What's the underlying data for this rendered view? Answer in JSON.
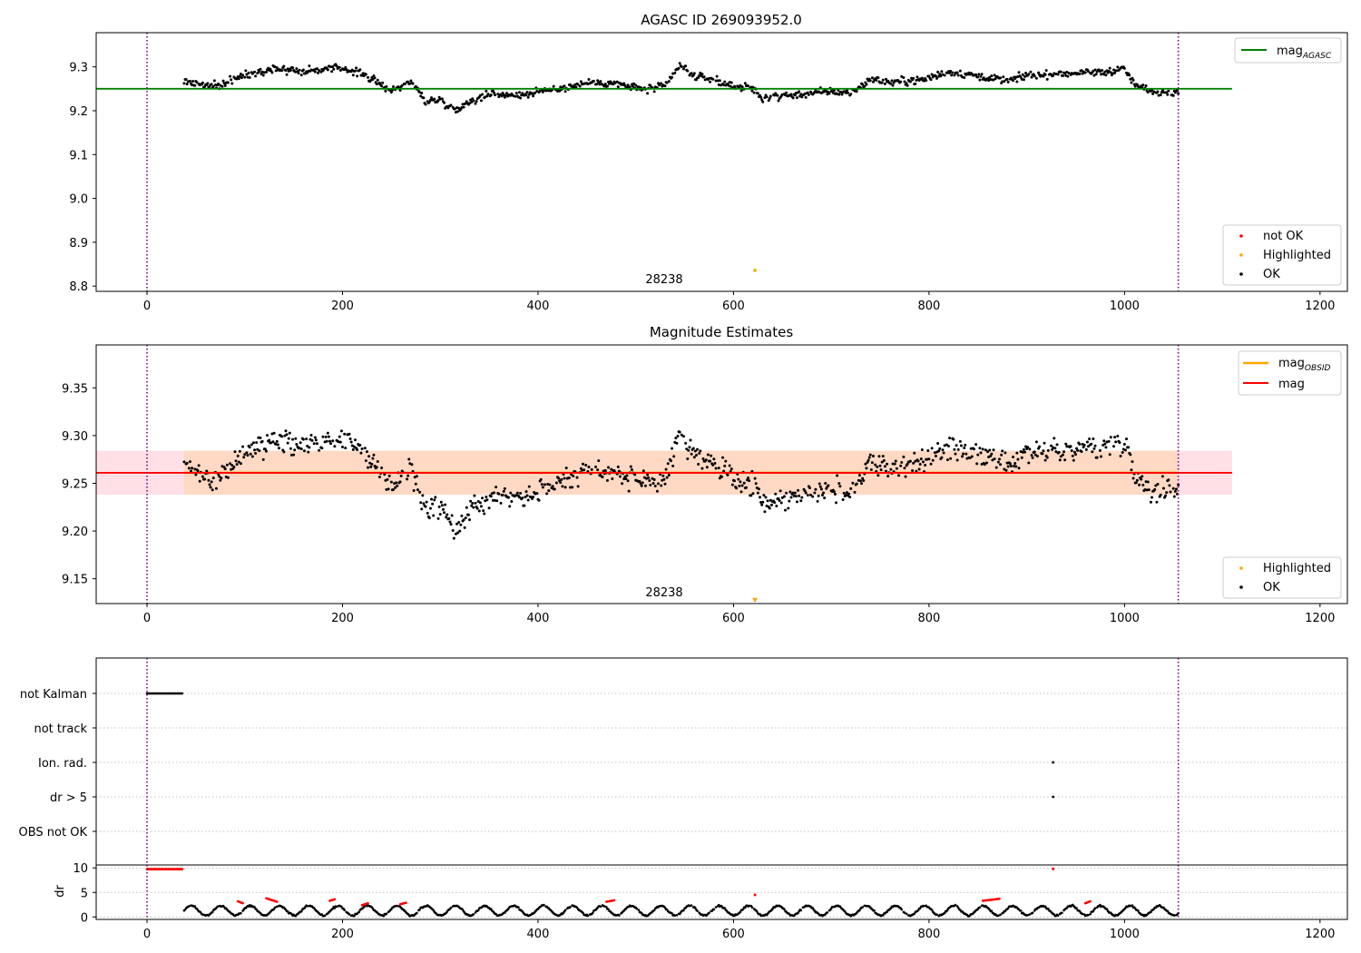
{
  "chart_data": [
    {
      "type": "scatter",
      "title": "AGASC ID 269093952.0",
      "xlabel": "",
      "ylabel": "",
      "xlim": [
        -52,
        1228
      ],
      "ylim": [
        8.788,
        9.378
      ],
      "xticks": [
        0,
        200,
        400,
        600,
        800,
        1000,
        1200
      ],
      "yticks": [
        8.8,
        8.9,
        9.0,
        9.1,
        9.2,
        9.3
      ],
      "ytick_labels": [
        "8.8",
        "8.9",
        "9.0",
        "9.1",
        "9.2",
        "9.3"
      ],
      "vlines": [
        0,
        1055
      ],
      "hline": {
        "y": 9.25,
        "x_range": [
          -52,
          1110
        ],
        "color": "#008000"
      },
      "annotation": {
        "text": "28238",
        "x": 527
      },
      "highlighted_points": [
        {
          "x": 622,
          "y": 8.836
        }
      ],
      "ok_series_profile": {
        "x_range": [
          38,
          1055
        ],
        "knots_x": [
          38,
          50,
          70,
          100,
          130,
          160,
          200,
          220,
          250,
          270,
          285,
          300,
          315,
          330,
          350,
          380,
          400,
          420,
          450,
          480,
          510,
          530,
          545,
          560,
          580,
          600,
          620,
          630,
          650,
          700,
          720,
          740,
          760,
          790,
          820,
          850,
          880,
          900,
          950,
          980,
          1000,
          1010,
          1030,
          1055
        ],
        "knots_y": [
          9.266,
          9.262,
          9.255,
          9.282,
          9.296,
          9.29,
          9.298,
          9.285,
          9.246,
          9.265,
          9.222,
          9.226,
          9.2,
          9.222,
          9.238,
          9.236,
          9.242,
          9.25,
          9.264,
          9.262,
          9.248,
          9.256,
          9.303,
          9.278,
          9.27,
          9.255,
          9.25,
          9.228,
          9.234,
          9.244,
          9.24,
          9.272,
          9.265,
          9.27,
          9.288,
          9.28,
          9.268,
          9.28,
          9.286,
          9.288,
          9.296,
          9.26,
          9.242,
          9.244
        ],
        "noise": 0.008
      },
      "legend": {
        "position": "bottom-right",
        "entries": [
          {
            "label": "not OK",
            "color": "#ff0000",
            "marker": "point"
          },
          {
            "label": "Highlighted",
            "color": "#ffa500",
            "marker": "point"
          },
          {
            "label": "OK",
            "color": "#000000",
            "marker": "point"
          }
        ]
      },
      "legend2": {
        "position": "top-right",
        "entries": [
          {
            "label": "mag",
            "sub": "AGASC",
            "color": "#008000",
            "marker": "line"
          }
        ]
      }
    },
    {
      "type": "scatter",
      "title": "Magnitude Estimates",
      "xlabel": "",
      "ylabel": "",
      "xlim": [
        -52,
        1228
      ],
      "ylim": [
        9.124,
        9.395
      ],
      "xticks": [
        0,
        200,
        400,
        600,
        800,
        1000,
        1200
      ],
      "yticks": [
        9.15,
        9.2,
        9.25,
        9.3,
        9.35
      ],
      "ytick_labels": [
        "9.15",
        "9.20",
        "9.25",
        "9.30",
        "9.35"
      ],
      "vlines": [
        0,
        1055
      ],
      "band_pink": {
        "y_range": [
          9.238,
          9.284
        ],
        "x_range": [
          -52,
          1110
        ],
        "color": "#ffe0e6"
      },
      "band_orange": {
        "y_range": [
          9.238,
          9.284
        ],
        "x_range": [
          38,
          1055
        ],
        "color": "#ffd9c4"
      },
      "hline": {
        "y": 9.261,
        "x_range": [
          -52,
          1110
        ],
        "color": "#ff0000"
      },
      "annotation": {
        "text": "28238",
        "x": 527
      },
      "highlighted_points": [
        {
          "x": 622,
          "y": 9.128
        }
      ],
      "ok_series_profile": {
        "x_range": [
          38,
          1055
        ],
        "knots_x": [
          38,
          50,
          70,
          100,
          130,
          160,
          200,
          220,
          250,
          270,
          285,
          300,
          315,
          330,
          350,
          380,
          400,
          420,
          450,
          480,
          510,
          530,
          545,
          560,
          580,
          600,
          620,
          630,
          650,
          700,
          720,
          740,
          760,
          790,
          820,
          850,
          880,
          900,
          950,
          980,
          1000,
          1010,
          1030,
          1055
        ],
        "knots_y": [
          9.266,
          9.262,
          9.255,
          9.282,
          9.296,
          9.29,
          9.298,
          9.285,
          9.246,
          9.265,
          9.222,
          9.226,
          9.2,
          9.222,
          9.238,
          9.236,
          9.242,
          9.25,
          9.264,
          9.262,
          9.248,
          9.256,
          9.303,
          9.278,
          9.27,
          9.255,
          9.25,
          9.228,
          9.234,
          9.244,
          9.24,
          9.272,
          9.265,
          9.27,
          9.288,
          9.28,
          9.268,
          9.28,
          9.286,
          9.288,
          9.296,
          9.26,
          9.242,
          9.244
        ],
        "noise": 0.011
      },
      "legend": {
        "position": "bottom-right",
        "entries": [
          {
            "label": "Highlighted",
            "color": "#ffa500",
            "marker": "point"
          },
          {
            "label": "OK",
            "color": "#000000",
            "marker": "point"
          }
        ]
      },
      "legend2": {
        "position": "top-right",
        "entries": [
          {
            "label": "mag",
            "sub": "OBSID",
            "color": "#ffa500",
            "marker": "line"
          },
          {
            "label": "mag",
            "sub": "",
            "color": "#ff0000",
            "marker": "line"
          }
        ]
      }
    },
    {
      "type": "scatter",
      "title": "",
      "xlabel": "",
      "ylabel": "",
      "xlim": [
        -52,
        1228
      ],
      "categories": [
        "not Kalman",
        "not track",
        "Ion. rad.",
        "dr > 5",
        "OBS not OK"
      ],
      "vlines": [
        0,
        1055
      ],
      "flag_points": [
        {
          "category": "not Kalman",
          "x_range": [
            0,
            36
          ]
        },
        {
          "category": "Ion. rad.",
          "x": 927
        },
        {
          "category": "dr > 5",
          "x": 927
        }
      ]
    },
    {
      "type": "scatter",
      "title": "",
      "xlabel": "",
      "ylabel": "dr",
      "xlim": [
        -52,
        1228
      ],
      "ylim": [
        -0.5,
        10.6
      ],
      "xticks": [
        0,
        200,
        400,
        600,
        800,
        1000,
        1200
      ],
      "yticks": [
        0,
        5,
        10
      ],
      "vlines": [
        0,
        1055
      ],
      "red_high": {
        "x_range": [
          0,
          36
        ],
        "y": 9.75
      },
      "red_points": [
        {
          "x": 622,
          "y": 4.5
        },
        {
          "x": 927,
          "y": 9.8
        }
      ],
      "red_arcs": [
        {
          "x_range": [
            93,
            98
          ],
          "y_range": [
            3.2,
            2.8
          ]
        },
        {
          "x_range": [
            122,
            133
          ],
          "y_range": [
            3.8,
            3.1
          ]
        },
        {
          "x_range": [
            187,
            192
          ],
          "y_range": [
            3.3,
            3.6
          ]
        },
        {
          "x_range": [
            220,
            226
          ],
          "y_range": [
            2.4,
            2.8
          ]
        },
        {
          "x_range": [
            259,
            265
          ],
          "y_range": [
            2.6,
            2.9
          ]
        },
        {
          "x_range": [
            470,
            478
          ],
          "y_range": [
            3.1,
            3.4
          ]
        },
        {
          "x_range": [
            855,
            872
          ],
          "y_range": [
            3.3,
            3.7
          ]
        },
        {
          "x_range": [
            960,
            965
          ],
          "y_range": [
            2.8,
            3.2
          ]
        }
      ],
      "dr_profile": {
        "x_range": [
          38,
          1055
        ],
        "period": 30,
        "amplitude": 1.1,
        "base": 1.3
      }
    }
  ]
}
